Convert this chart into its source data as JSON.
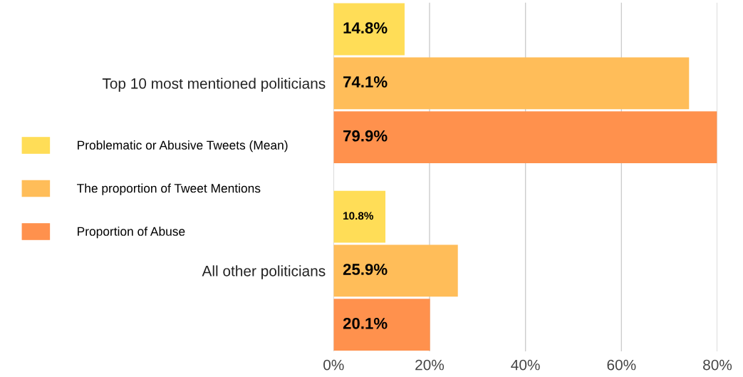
{
  "chart_data": {
    "type": "bar",
    "orientation": "horizontal",
    "categories": [
      "Top 10 most mentioned politicians",
      "All other politicians"
    ],
    "series": [
      {
        "name": "Problematic or Abusive Tweets (Mean)",
        "color": "#ffdd57",
        "values": [
          14.8,
          10.8
        ],
        "value_labels": [
          "14.8%",
          "10.8%"
        ]
      },
      {
        "name": "The proportion of Tweet Mentions",
        "color": "#ffbd59",
        "values": [
          74.1,
          25.9
        ],
        "value_labels": [
          "74.1%",
          "25.9%"
        ]
      },
      {
        "name": "Proportion of Abuse",
        "color": "#ff914d",
        "values": [
          79.9,
          20.1
        ],
        "value_labels": [
          "79.9%",
          "20.1%"
        ]
      }
    ],
    "xlim": [
      0,
      80
    ],
    "xticks": [
      {
        "value": 0,
        "label": "0%"
      },
      {
        "value": 20,
        "label": "20%"
      },
      {
        "value": 40,
        "label": "40%"
      },
      {
        "value": 60,
        "label": "60%"
      },
      {
        "value": 80,
        "label": "80%"
      }
    ],
    "grid": "x",
    "legend": "left"
  }
}
